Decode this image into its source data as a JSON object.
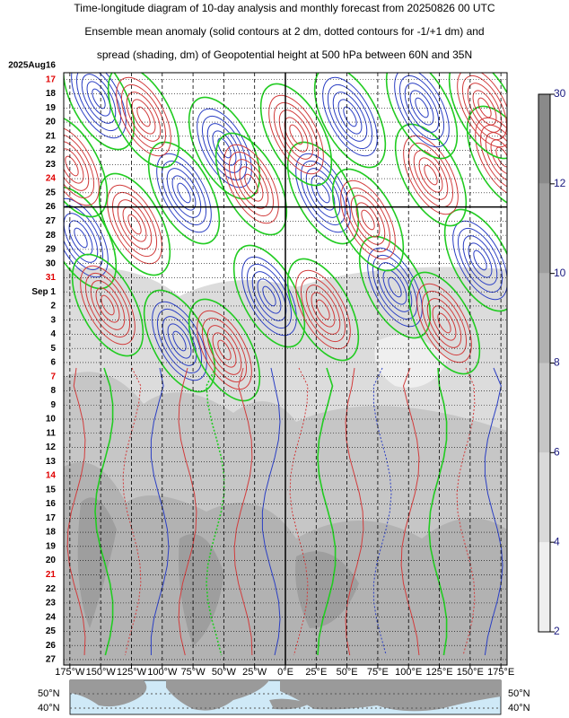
{
  "chart_data": {
    "type": "hovmoller",
    "title_lines": [
      "Time-longitude diagram of 10-day analysis and monthly forecast from 20250826 00 UTC",
      "Ensemble mean anomaly (solid contours at 2 dm, dotted contours for -1/+1 dm) and",
      "spread (shading, dm) of Geopotential height at 500 hPa between 60N and 35N"
    ],
    "categories": [
      "2025Aug16",
      "17",
      "18",
      "19",
      "20",
      "21",
      "22",
      "23",
      "24",
      "25",
      "26",
      "27",
      "28",
      "29",
      "30",
      "31",
      "Sep  1",
      "2",
      "3",
      "4",
      "5",
      "6",
      "7",
      "8",
      "9",
      "10",
      "11",
      "12",
      "13",
      "14",
      "15",
      "16",
      "17",
      "18",
      "19",
      "20",
      "21",
      "22",
      "23",
      "24",
      "25",
      "26",
      "27"
    ],
    "category_colors": [
      "#000000",
      "#e00000",
      "#000000",
      "#000000",
      "#000000",
      "#000000",
      "#000000",
      "#000000",
      "#e00000",
      "#000000",
      "#000000",
      "#000000",
      "#000000",
      "#000000",
      "#000000",
      "#e00000",
      "#000000",
      "#000000",
      "#000000",
      "#000000",
      "#000000",
      "#000000",
      "#e00000",
      "#000000",
      "#000000",
      "#000000",
      "#000000",
      "#000000",
      "#000000",
      "#e00000",
      "#000000",
      "#000000",
      "#000000",
      "#000000",
      "#000000",
      "#000000",
      "#e00000",
      "#000000",
      "#000000",
      "#000000",
      "#000000",
      "#000000",
      "#000000"
    ],
    "xlim": [
      -180,
      180
    ],
    "xticks": [
      {
        "value": -175,
        "label": "175°W"
      },
      {
        "value": -150,
        "label": "150°W"
      },
      {
        "value": -125,
        "label": "125°W"
      },
      {
        "value": -100,
        "label": "100°W"
      },
      {
        "value": -75,
        "label": "75°W"
      },
      {
        "value": -50,
        "label": "50°W"
      },
      {
        "value": -25,
        "label": "25°W"
      },
      {
        "value": 0,
        "label": "0°E"
      },
      {
        "value": 25,
        "label": "25°E"
      },
      {
        "value": 50,
        "label": "50°E"
      },
      {
        "value": 75,
        "label": "75°E"
      },
      {
        "value": 100,
        "label": "100°E"
      },
      {
        "value": 125,
        "label": "125°E"
      },
      {
        "value": 150,
        "label": "150°E"
      },
      {
        "value": 175,
        "label": "175°E"
      }
    ],
    "colorbar": {
      "ticks": [
        2,
        4,
        6,
        8,
        10,
        12,
        30
      ],
      "colors": [
        "#efefef",
        "#dadada",
        "#c6c6c6",
        "#b2b2b2",
        "#9e9e9e",
        "#8a8a8a"
      ]
    },
    "map": {
      "labels_left": [
        "50°N",
        "40°N"
      ],
      "labels_right": [
        "50°N",
        "40°N"
      ]
    }
  }
}
